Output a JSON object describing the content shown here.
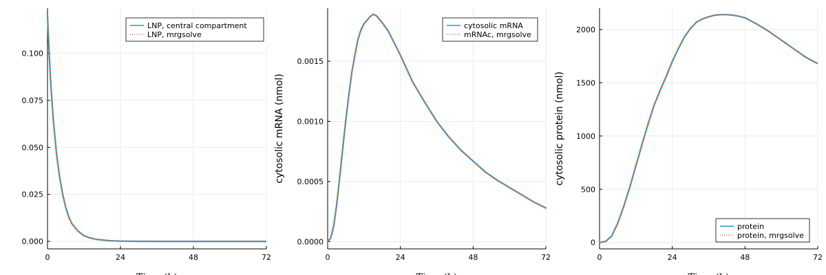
{
  "colors": {
    "model": "#1f9bd6",
    "mrgsolve": "#e26d3c",
    "grid": "#ebebeb",
    "axis": "#000000"
  },
  "chart_data": [
    {
      "type": "line",
      "xlabel": "Time (h)",
      "ylabel": "",
      "xlim": [
        0,
        72
      ],
      "ylim": [
        -0.004,
        0.124
      ],
      "xticks": [
        0,
        24,
        48,
        72
      ],
      "xtick_labels": [
        "0",
        "24",
        "48",
        "72"
      ],
      "yticks": [
        0,
        0.025,
        0.05,
        0.075,
        0.1
      ],
      "ytick_labels": [
        "0.000",
        "0.025",
        "0.050",
        "0.075",
        "0.100"
      ],
      "grid": true,
      "legend_position": "top-right",
      "series": [
        {
          "name": "LNP, central compartment",
          "style": "solid",
          "x": [
            0,
            0.5,
            1,
            1.5,
            2,
            3,
            4,
            5,
            6,
            7,
            8,
            10,
            12,
            14,
            16,
            20,
            24,
            30,
            36,
            48,
            60,
            72
          ],
          "y": [
            0.12,
            0.102,
            0.086,
            0.074,
            0.063,
            0.046,
            0.034,
            0.025,
            0.018,
            0.013,
            0.0095,
            0.0055,
            0.003,
            0.0018,
            0.0011,
            0.0004,
            0.00015,
            3e-05,
            0,
            0,
            0,
            0
          ]
        },
        {
          "name": "LNP, mrgsolve",
          "style": "dotted",
          "x": [
            0,
            0.5,
            1,
            1.5,
            2,
            3,
            4,
            5,
            6,
            7,
            8,
            10,
            12,
            14,
            16,
            20,
            24,
            30,
            36,
            48,
            60,
            72
          ],
          "y": [
            0.12,
            0.102,
            0.086,
            0.074,
            0.063,
            0.046,
            0.034,
            0.025,
            0.018,
            0.013,
            0.0095,
            0.0055,
            0.003,
            0.0018,
            0.0011,
            0.0004,
            0.00015,
            3e-05,
            0,
            0,
            0,
            0
          ]
        }
      ]
    },
    {
      "type": "line",
      "xlabel": "Time (h)",
      "ylabel": "cytosolic mRNA (nmol)",
      "xlim": [
        0,
        72
      ],
      "ylim": [
        -6e-05,
        0.00194
      ],
      "xticks": [
        0,
        24,
        48,
        72
      ],
      "xtick_labels": [
        "0",
        "24",
        "48",
        "72"
      ],
      "yticks": [
        0,
        0.0005,
        0.001,
        0.0015
      ],
      "ytick_labels": [
        "0.0000",
        "0.0005",
        "0.0010",
        "0.0015"
      ],
      "grid": true,
      "legend_position": "top-right",
      "series": [
        {
          "name": "cytosolic mRNA",
          "style": "solid",
          "x": [
            0,
            1,
            2,
            3,
            4,
            5,
            6,
            7,
            8,
            9,
            10,
            11,
            12,
            13,
            14,
            15,
            16,
            18,
            20,
            24,
            28,
            32,
            36,
            40,
            44,
            48,
            52,
            56,
            60,
            64,
            68,
            72
          ],
          "y": [
            0,
            3e-05,
            0.00013,
            0.00031,
            0.00054,
            0.00078,
            0.00101,
            0.00122,
            0.00141,
            0.00155,
            0.00168,
            0.00176,
            0.00181,
            0.00184,
            0.00187,
            0.00189,
            0.00188,
            0.00182,
            0.00175,
            0.00155,
            0.00133,
            0.00116,
            0.001,
            0.00087,
            0.00076,
            0.00067,
            0.00058,
            0.00051,
            0.00045,
            0.00039,
            0.00033,
            0.00028
          ]
        },
        {
          "name": "mRNAc, mrgsolve",
          "style": "dotted",
          "x": [
            0,
            1,
            2,
            3,
            4,
            5,
            6,
            7,
            8,
            9,
            10,
            11,
            12,
            13,
            14,
            15,
            16,
            18,
            20,
            24,
            28,
            32,
            36,
            40,
            44,
            48,
            52,
            56,
            60,
            64,
            68,
            72
          ],
          "y": [
            0,
            3e-05,
            0.00013,
            0.00031,
            0.00054,
            0.00078,
            0.00101,
            0.00122,
            0.00141,
            0.00155,
            0.00168,
            0.00176,
            0.00181,
            0.00184,
            0.00187,
            0.00189,
            0.00188,
            0.00182,
            0.00175,
            0.00155,
            0.00133,
            0.00116,
            0.001,
            0.00087,
            0.00076,
            0.00067,
            0.00058,
            0.00051,
            0.00045,
            0.00039,
            0.00033,
            0.00028
          ]
        }
      ]
    },
    {
      "type": "line",
      "xlabel": "Time (h)",
      "ylabel": "cytosolic protein (nmol)",
      "xlim": [
        0,
        72
      ],
      "ylim": [
        -60,
        2200
      ],
      "xticks": [
        0,
        24,
        48,
        72
      ],
      "xtick_labels": [
        "0",
        "24",
        "48",
        "72"
      ],
      "yticks": [
        0,
        500,
        1000,
        1500,
        2000
      ],
      "ytick_labels": [
        "0",
        "500",
        "1000",
        "1500",
        "2000"
      ],
      "grid": true,
      "legend_position": "bottom-right",
      "series": [
        {
          "name": "protein",
          "style": "solid",
          "x": [
            0,
            2,
            4,
            6,
            8,
            10,
            12,
            14,
            16,
            18,
            20,
            22,
            24,
            26,
            28,
            30,
            32,
            34,
            36,
            38,
            40,
            42,
            44,
            46,
            48,
            52,
            56,
            60,
            64,
            68,
            72
          ],
          "y": [
            0,
            10,
            60,
            180,
            340,
            520,
            720,
            920,
            1110,
            1290,
            1430,
            1560,
            1700,
            1820,
            1930,
            2010,
            2070,
            2100,
            2120,
            2135,
            2140,
            2140,
            2135,
            2125,
            2110,
            2050,
            1980,
            1900,
            1820,
            1740,
            1680
          ]
        },
        {
          "name": "protein, mrgsolve",
          "style": "dotted",
          "x": [
            0,
            2,
            4,
            6,
            8,
            10,
            12,
            14,
            16,
            18,
            20,
            22,
            24,
            26,
            28,
            30,
            32,
            34,
            36,
            38,
            40,
            42,
            44,
            46,
            48,
            52,
            56,
            60,
            64,
            68,
            72
          ],
          "y": [
            0,
            10,
            60,
            180,
            340,
            520,
            720,
            920,
            1110,
            1290,
            1430,
            1560,
            1700,
            1820,
            1930,
            2010,
            2070,
            2100,
            2120,
            2135,
            2140,
            2140,
            2135,
            2125,
            2110,
            2050,
            1980,
            1900,
            1820,
            1740,
            1680
          ]
        }
      ]
    }
  ]
}
